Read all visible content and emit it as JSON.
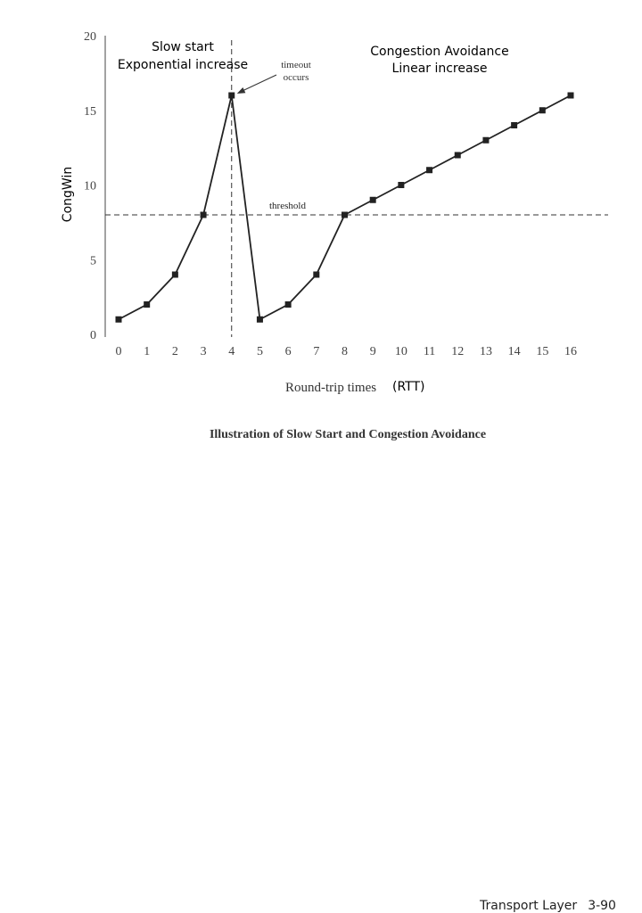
{
  "chart_data": {
    "type": "line",
    "title": "Illustration of Slow Start and Congestion Avoidance",
    "xlabel": "Round-trip times",
    "xlabel_unit": "(RTT)",
    "ylabel": "CongWin",
    "xlim": [
      0,
      16
    ],
    "ylim": [
      0,
      20
    ],
    "x_ticks": [
      0,
      1,
      2,
      3,
      4,
      5,
      6,
      7,
      8,
      9,
      10,
      11,
      12,
      13,
      14,
      15,
      16
    ],
    "y_ticks": [
      0,
      5,
      10,
      15,
      20
    ],
    "grid": false,
    "series": [
      {
        "x": [
          0,
          1,
          2,
          3,
          4,
          5,
          6,
          7,
          8,
          9,
          10,
          11,
          12,
          13,
          14,
          15,
          16
        ],
        "y": [
          1,
          2,
          4,
          8,
          16,
          1,
          2,
          4,
          8,
          9,
          10,
          11,
          12,
          13,
          14,
          15,
          16
        ]
      }
    ],
    "threshold": {
      "label": "threshold",
      "y": 8
    },
    "timeout_marker": {
      "x": 4,
      "label_line1": "timeout",
      "label_line2": "occurs"
    },
    "annotations": {
      "slow_start_line1": "Slow start",
      "slow_start_line2": "Exponential increase",
      "congestion_line1": "Congestion Avoidance",
      "congestion_line2": "Linear increase"
    }
  },
  "footer": {
    "text": "Transport Layer",
    "page": "3-90"
  }
}
